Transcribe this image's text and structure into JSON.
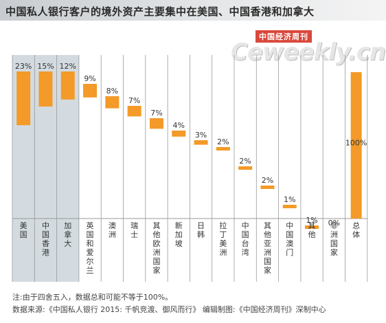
{
  "title": "中国私人银行客户的境外资产主要集中在美国、中国香港和加拿大",
  "logo": {
    "tag": "中国经济周刊",
    "wordmark": "Ceweekly.cn"
  },
  "footnotes": {
    "note": "注:由于四舍五入，数据总和可能不等于100%。",
    "source": "数据来源:《中国私人银行 2015: 千帆竞渡、御风而行》 编辑制图:《中国经济周刊》深制中心"
  },
  "colors": {
    "bar": "#f39a28",
    "highlight": "#d3dbe0",
    "axis": "#999999"
  },
  "chart_data": {
    "type": "bar",
    "title": "中国私人银行客户的境外资产主要集中在美国、中国香港和加拿大",
    "categories": [
      "美国",
      "中国香港",
      "加拿大",
      "英国和爱尔兰",
      "澳洲",
      "瑞士",
      "其他欧洲国家",
      "新加坡",
      "日韩",
      "拉丁美洲",
      "中国台湾",
      "其他亚洲国家",
      "中国澳门",
      "其他",
      "非洲国家",
      "总体"
    ],
    "values": [
      23,
      15,
      12,
      9,
      8,
      7,
      7,
      4,
      3,
      2,
      2,
      2,
      1,
      1,
      0,
      100
    ],
    "labels": [
      "23%",
      "15%",
      "12%",
      "9%",
      "8%",
      "7%",
      "7%",
      "4%",
      "3%",
      "2%",
      "2%",
      "2%",
      "1%",
      "1%",
      "0%",
      "100%"
    ],
    "highlighted_categories": [
      "美国",
      "中国香港",
      "加拿大"
    ],
    "style": "waterfall",
    "unit": "%",
    "grid": true
  }
}
